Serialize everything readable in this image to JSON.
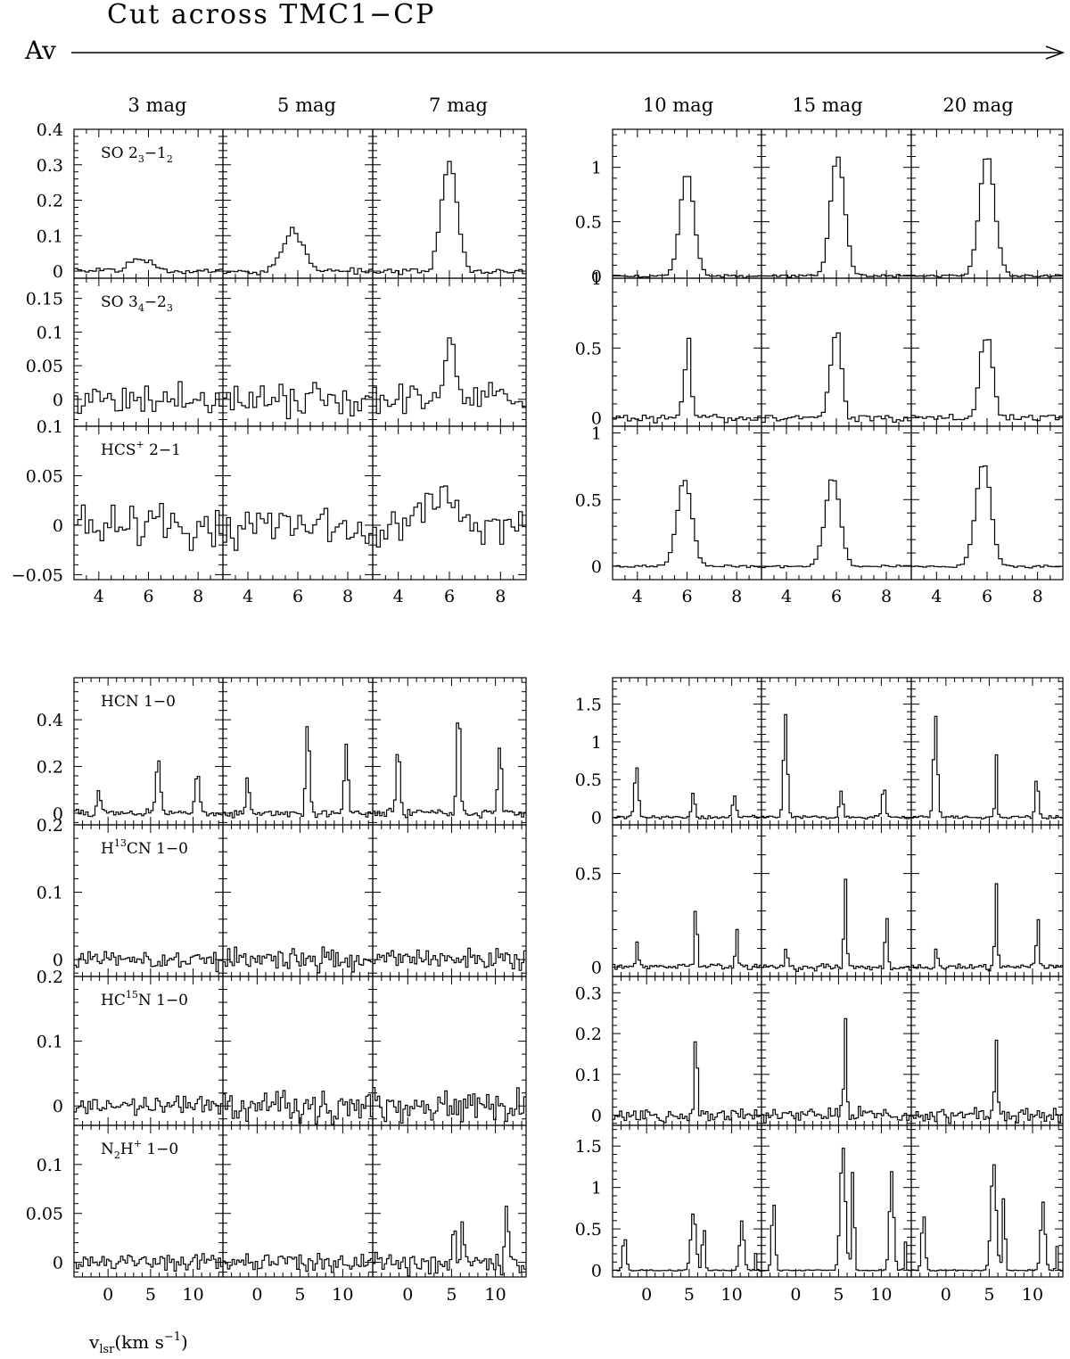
{
  "figure": {
    "title": "Cut across TMC1−CP",
    "arrow_label": "Av",
    "xlabel": "v",
    "xlabel_sub": "lsr",
    "xlabel_unit": "(km s",
    "xlabel_sup": "−1",
    "xlabel_close": ")",
    "columns": [
      "3 mag",
      "5 mag",
      "7 mag",
      "10 mag",
      "15 mag",
      "20 mag"
    ]
  },
  "chart_data": [
    {
      "type": "line",
      "block": "upper",
      "xlim": [
        3.0,
        9.0
      ],
      "xticks": [
        4,
        6,
        8
      ],
      "rows": [
        {
          "line": {
            "base": "SO 2",
            "sub": "3",
            "mid": "−1",
            "sub2": "2"
          },
          "left": {
            "ylim": [
              -0.02,
              0.4
            ],
            "yticks": [
              0,
              0.1,
              0.2,
              0.3,
              0.4
            ],
            "yticklabels": [
              "0",
              "0.1",
              "0.2",
              "0.3",
              "0.4"
            ]
          },
          "right": {
            "ylim": [
              -0.02,
              1.35
            ],
            "yticks": [
              0,
              0.5,
              1
            ],
            "yticklabels": [
              "0",
              "0.5",
              "1"
            ]
          },
          "spectra": [
            {
              "column": "3 mag",
              "noise": 0.006,
              "lines": [
                {
                  "v": 5.7,
                  "a": 0.035,
                  "w": 0.45
                }
              ]
            },
            {
              "column": "5 mag",
              "noise": 0.008,
              "lines": [
                {
                  "v": 5.8,
                  "a": 0.11,
                  "w": 0.42
                }
              ]
            },
            {
              "column": "7 mag",
              "noise": 0.008,
              "lines": [
                {
                  "v": 6.0,
                  "a": 0.31,
                  "w": 0.3
                }
              ]
            },
            {
              "column": "10 mag",
              "noise": 0.01,
              "lines": [
                {
                  "v": 6.0,
                  "a": 0.95,
                  "w": 0.28
                }
              ]
            },
            {
              "column": "15 mag",
              "noise": 0.01,
              "lines": [
                {
                  "v": 6.05,
                  "a": 1.1,
                  "w": 0.28
                }
              ]
            },
            {
              "column": "20 mag",
              "noise": 0.01,
              "lines": [
                {
                  "v": 6.0,
                  "a": 1.12,
                  "w": 0.3
                }
              ]
            }
          ]
        },
        {
          "line": {
            "base": "SO 3",
            "sub": "4",
            "mid": "−2",
            "sub2": "3"
          },
          "left": {
            "ylim": [
              -0.04,
              0.18
            ],
            "yticks": [
              0,
              0.05,
              0.1,
              0.15
            ],
            "yticklabels": [
              "0",
              "0.05",
              "0.1",
              "0.15"
            ]
          },
          "right": {
            "ylim": [
              -0.06,
              1.0
            ],
            "yticks": [
              0,
              0.5,
              1
            ],
            "yticklabels": [
              "0",
              "0.5",
              "1"
            ]
          },
          "spectra": [
            {
              "column": "3 mag",
              "noise": 0.018,
              "lines": []
            },
            {
              "column": "5 mag",
              "noise": 0.018,
              "lines": []
            },
            {
              "column": "7 mag",
              "noise": 0.016,
              "lines": [
                {
                  "v": 6.05,
                  "a": 0.09,
                  "w": 0.2
                }
              ]
            },
            {
              "column": "10 mag",
              "noise": 0.02,
              "lines": [
                {
                  "v": 6.05,
                  "a": 0.62,
                  "w": 0.1
                },
                {
                  "v": 5.8,
                  "a": 0.12,
                  "w": 0.1
                }
              ]
            },
            {
              "column": "15 mag",
              "noise": 0.02,
              "lines": [
                {
                  "v": 6.05,
                  "a": 0.6,
                  "w": 0.18
                },
                {
                  "v": 5.75,
                  "a": 0.2,
                  "w": 0.15
                }
              ]
            },
            {
              "column": "20 mag",
              "noise": 0.02,
              "lines": [
                {
                  "v": 6.05,
                  "a": 0.55,
                  "w": 0.2
                },
                {
                  "v": 5.75,
                  "a": 0.25,
                  "w": 0.15
                }
              ]
            }
          ]
        },
        {
          "line": {
            "base": "HCS",
            "sup": "+",
            "tail": " 2−1"
          },
          "left": {
            "ylim": [
              -0.055,
              0.1
            ],
            "yticks": [
              -0.05,
              0,
              0.05,
              0.1
            ],
            "yticklabels": [
              "−0.05",
              "0",
              "0.05",
              "0.1"
            ]
          },
          "right": {
            "ylim": [
              -0.1,
              1.05
            ],
            "yticks": [
              0,
              0.5,
              1
            ],
            "yticklabels": [
              "0",
              "0.5",
              "1"
            ]
          },
          "spectra": [
            {
              "column": "3 mag",
              "noise": 0.015,
              "lines": []
            },
            {
              "column": "5 mag",
              "noise": 0.015,
              "lines": []
            },
            {
              "column": "7 mag",
              "noise": 0.015,
              "lines": [
                {
                  "v": 5.8,
                  "a": 0.03,
                  "w": 0.5
                }
              ]
            },
            {
              "column": "10 mag",
              "noise": 0.008,
              "lines": [
                {
                  "v": 5.9,
                  "a": 0.65,
                  "w": 0.3
                }
              ]
            },
            {
              "column": "15 mag",
              "noise": 0.008,
              "lines": [
                {
                  "v": 5.85,
                  "a": 0.66,
                  "w": 0.3
                }
              ]
            },
            {
              "column": "20 mag",
              "noise": 0.008,
              "lines": [
                {
                  "v": 5.85,
                  "a": 0.77,
                  "w": 0.3
                }
              ]
            }
          ]
        }
      ]
    },
    {
      "type": "line",
      "block": "lower",
      "xlim": [
        -4.0,
        13.5
      ],
      "xticks": [
        0,
        5,
        10
      ],
      "rows": [
        {
          "line": {
            "base": "HCN 1−0"
          },
          "left": {
            "ylim": [
              -0.05,
              0.58
            ],
            "yticks": [
              0,
              0.2,
              0.4
            ],
            "yticklabels": [
              "0",
              "0.2",
              "0.4"
            ]
          },
          "right": {
            "ylim": [
              -0.1,
              1.85
            ],
            "yticks": [
              0,
              0.5,
              1,
              1.5
            ],
            "yticklabels": [
              "0",
              "0.5",
              "1",
              "1.5"
            ]
          },
          "spectra": [
            {
              "column": "3 mag",
              "noise": 0.01,
              "lines": [
                {
                  "v": -1.1,
                  "a": 0.1,
                  "w": 0.2
                },
                {
                  "v": 5.9,
                  "a": 0.24,
                  "w": 0.25
                },
                {
                  "v": 10.5,
                  "a": 0.18,
                  "w": 0.25
                }
              ]
            },
            {
              "column": "5 mag",
              "noise": 0.012,
              "lines": [
                {
                  "v": -1.1,
                  "a": 0.15,
                  "w": 0.2
                },
                {
                  "v": 5.9,
                  "a": 0.4,
                  "w": 0.22
                },
                {
                  "v": 10.4,
                  "a": 0.3,
                  "w": 0.22
                }
              ]
            },
            {
              "column": "7 mag",
              "noise": 0.012,
              "lines": [
                {
                  "v": -1.1,
                  "a": 0.28,
                  "w": 0.22
                },
                {
                  "v": 5.8,
                  "a": 0.48,
                  "w": 0.2
                },
                {
                  "v": 10.5,
                  "a": 0.3,
                  "w": 0.22
                }
              ]
            },
            {
              "column": "10 mag",
              "noise": 0.015,
              "lines": [
                {
                  "v": -1.2,
                  "a": 0.7,
                  "w": 0.22
                },
                {
                  "v": 5.5,
                  "a": 0.35,
                  "w": 0.18
                },
                {
                  "v": 10.3,
                  "a": 0.3,
                  "w": 0.2
                }
              ]
            },
            {
              "column": "15 mag",
              "noise": 0.015,
              "lines": [
                {
                  "v": -1.2,
                  "a": 1.4,
                  "w": 0.22
                },
                {
                  "v": 5.3,
                  "a": 0.35,
                  "w": 0.2
                },
                {
                  "v": 10.3,
                  "a": 0.4,
                  "w": 0.2
                }
              ]
            },
            {
              "column": "20 mag",
              "noise": 0.015,
              "lines": [
                {
                  "v": -1.2,
                  "a": 1.37,
                  "w": 0.22
                },
                {
                  "v": 5.8,
                  "a": 0.85,
                  "w": 0.12
                },
                {
                  "v": 10.5,
                  "a": 0.55,
                  "w": 0.18
                }
              ]
            }
          ]
        },
        {
          "line": {
            "base": "H",
            "sup": "13",
            "tail": "CN 1−0"
          },
          "left": {
            "ylim": [
              -0.025,
              0.2
            ],
            "yticks": [
              0,
              0.1,
              0.2
            ],
            "yticklabels": [
              "0",
              "0.1",
              "0.2"
            ]
          },
          "right": {
            "ylim": [
              -0.05,
              0.76
            ],
            "yticks": [
              0,
              0.5
            ],
            "yticklabels": [
              "0",
              "0.5"
            ]
          },
          "spectra": [
            {
              "column": "3 mag",
              "noise": 0.01,
              "lines": []
            },
            {
              "column": "5 mag",
              "noise": 0.012,
              "lines": []
            },
            {
              "column": "7 mag",
              "noise": 0.012,
              "lines": []
            },
            {
              "column": "10 mag",
              "noise": 0.012,
              "lines": [
                {
                  "v": -1.1,
                  "a": 0.12,
                  "w": 0.15
                },
                {
                  "v": 5.8,
                  "a": 0.37,
                  "w": 0.15
                },
                {
                  "v": 10.6,
                  "a": 0.22,
                  "w": 0.15
                }
              ]
            },
            {
              "column": "15 mag",
              "noise": 0.012,
              "lines": [
                {
                  "v": -1.1,
                  "a": 0.12,
                  "w": 0.15
                },
                {
                  "v": 5.8,
                  "a": 0.47,
                  "w": 0.15
                },
                {
                  "v": 10.6,
                  "a": 0.3,
                  "w": 0.15
                }
              ]
            },
            {
              "column": "20 mag",
              "noise": 0.012,
              "lines": [
                {
                  "v": -1.1,
                  "a": 0.12,
                  "w": 0.15
                },
                {
                  "v": 5.8,
                  "a": 0.45,
                  "w": 0.15
                },
                {
                  "v": 10.6,
                  "a": 0.29,
                  "w": 0.15
                }
              ]
            }
          ]
        },
        {
          "line": {
            "base": "HC",
            "sup": "15",
            "tail": "N 1−0"
          },
          "left": {
            "ylim": [
              -0.03,
              0.2
            ],
            "yticks": [
              0,
              0.1,
              0.2
            ],
            "yticklabels": [
              "0",
              "0.1",
              "0.2"
            ]
          },
          "right": {
            "ylim": [
              -0.025,
              0.34
            ],
            "yticks": [
              0,
              0.1,
              0.2,
              0.3
            ],
            "yticklabels": [
              "0",
              "0.1",
              "0.2",
              "0.3"
            ]
          },
          "spectra": [
            {
              "column": "3 mag",
              "noise": 0.009,
              "lines": []
            },
            {
              "column": "5 mag",
              "noise": 0.018,
              "lines": []
            },
            {
              "column": "7 mag",
              "noise": 0.018,
              "lines": []
            },
            {
              "column": "10 mag",
              "noise": 0.012,
              "lines": [
                {
                  "v": 5.8,
                  "a": 0.22,
                  "w": 0.15
                }
              ]
            },
            {
              "column": "15 mag",
              "noise": 0.012,
              "lines": [
                {
                  "v": 5.8,
                  "a": 0.25,
                  "w": 0.15
                }
              ]
            },
            {
              "column": "20 mag",
              "noise": 0.012,
              "lines": [
                {
                  "v": 5.8,
                  "a": 0.2,
                  "w": 0.15
                }
              ]
            }
          ]
        },
        {
          "line": {
            "base": "N",
            "sub": "2",
            "mid": "H",
            "sup": "+",
            "tail": " 1−0"
          },
          "left": {
            "ylim": [
              -0.015,
              0.14
            ],
            "yticks": [
              0,
              0.05,
              0.1
            ],
            "yticklabels": [
              "0",
              "0.05",
              "0.1"
            ]
          },
          "right": {
            "ylim": [
              -0.08,
              1.75
            ],
            "yticks": [
              0,
              0.5,
              1,
              1.5
            ],
            "yticklabels": [
              "0",
              "0.5",
              "1",
              "1.5"
            ]
          },
          "spectra": [
            {
              "column": "3 mag",
              "noise": 0.006,
              "lines": []
            },
            {
              "column": "5 mag",
              "noise": 0.007,
              "lines": []
            },
            {
              "column": "7 mag",
              "noise": 0.007,
              "lines": [
                {
                  "v": 5.3,
                  "a": 0.055,
                  "w": 0.15
                },
                {
                  "v": 6.3,
                  "a": 0.045,
                  "w": 0.15
                },
                {
                  "v": 11.3,
                  "a": 0.055,
                  "w": 0.2
                }
              ]
            },
            {
              "column": "10 mag",
              "noise": 0.005,
              "lines": [
                {
                  "v": -2.6,
                  "a": 0.42,
                  "w": 0.2
                },
                {
                  "v": 5.5,
                  "a": 0.7,
                  "w": 0.3
                },
                {
                  "v": 6.7,
                  "a": 0.6,
                  "w": 0.15
                },
                {
                  "v": 11.2,
                  "a": 0.6,
                  "w": 0.25
                },
                {
                  "v": 12.8,
                  "a": 0.2,
                  "w": 0.1
                }
              ]
            },
            {
              "column": "15 mag",
              "noise": 0.005,
              "lines": [
                {
                  "v": -2.6,
                  "a": 0.85,
                  "w": 0.2
                },
                {
                  "v": 5.5,
                  "a": 1.5,
                  "w": 0.3
                },
                {
                  "v": 6.7,
                  "a": 1.3,
                  "w": 0.15
                },
                {
                  "v": 11.2,
                  "a": 1.2,
                  "w": 0.25
                },
                {
                  "v": 12.8,
                  "a": 0.35,
                  "w": 0.1
                }
              ]
            },
            {
              "column": "20 mag",
              "noise": 0.005,
              "lines": [
                {
                  "v": -2.6,
                  "a": 0.7,
                  "w": 0.2
                },
                {
                  "v": 5.5,
                  "a": 1.3,
                  "w": 0.3
                },
                {
                  "v": 6.7,
                  "a": 0.95,
                  "w": 0.15
                },
                {
                  "v": 11.2,
                  "a": 0.82,
                  "w": 0.25
                },
                {
                  "v": 12.8,
                  "a": 0.3,
                  "w": 0.1
                }
              ]
            }
          ]
        }
      ]
    }
  ]
}
